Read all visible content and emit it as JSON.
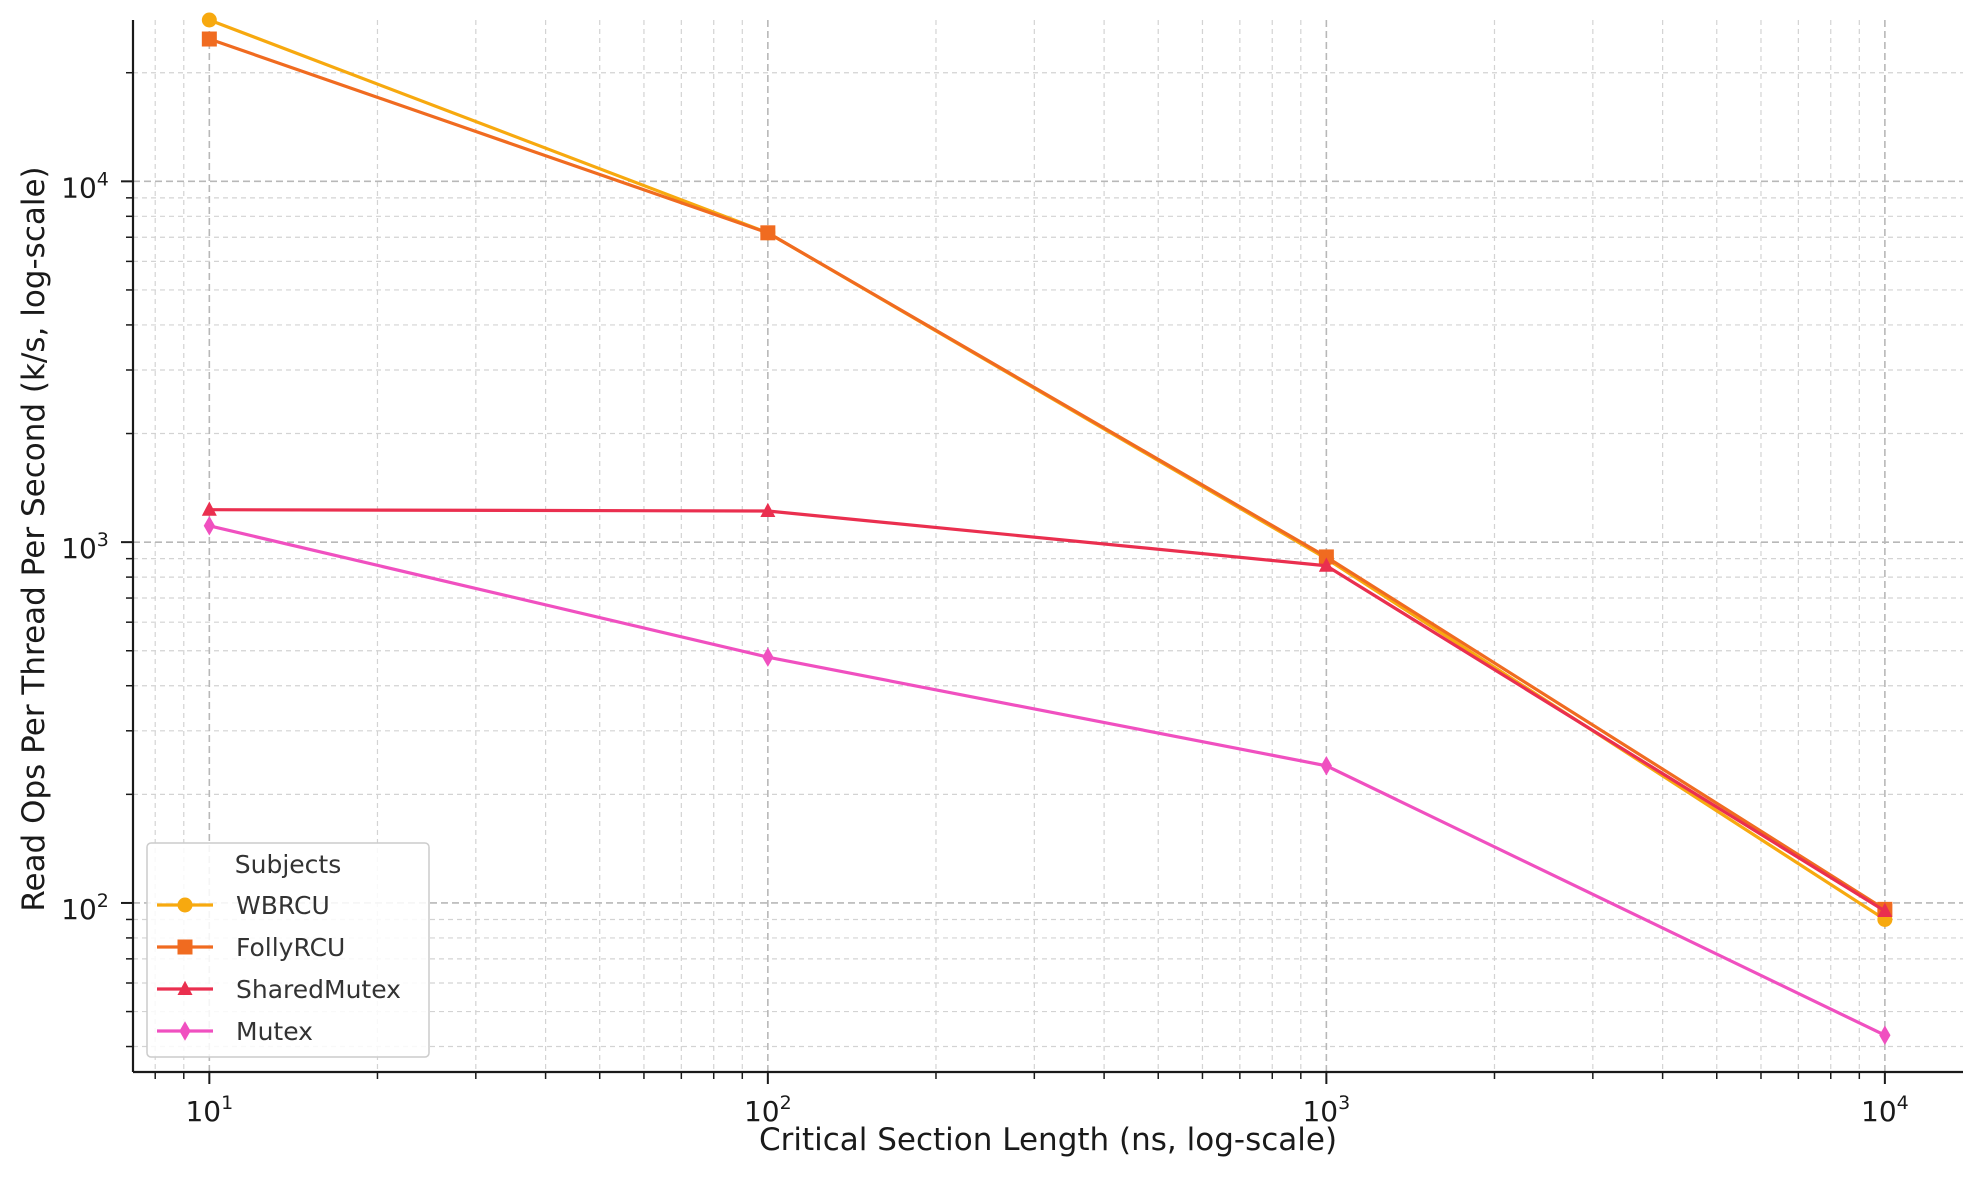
{
  "chart_data": {
    "type": "line",
    "xlabel": "Critical Section Length (ns, log-scale)",
    "ylabel": "Read Ops Per Thread Per Second (k/s, log-scale)",
    "xscale": "log",
    "yscale": "log",
    "xlim": [
      7.3,
      13800
    ],
    "ylim": [
      34,
      28000
    ],
    "grid": true,
    "x": [
      10,
      100,
      1000,
      10000
    ],
    "x_ticks": [
      {
        "base": "10",
        "exp": "1"
      },
      {
        "base": "10",
        "exp": "2"
      },
      {
        "base": "10",
        "exp": "3"
      },
      {
        "base": "10",
        "exp": "4"
      }
    ],
    "y_ticks": [
      {
        "base": "10",
        "exp": "2"
      },
      {
        "base": "10",
        "exp": "3"
      },
      {
        "base": "10",
        "exp": "4"
      }
    ],
    "legend": {
      "title": "Subjects",
      "position": "lower-left"
    },
    "series": [
      {
        "name": "WBRCU",
        "values": [
          28000,
          7200,
          900,
          90
        ],
        "color": "#f7a90f",
        "marker": "circle"
      },
      {
        "name": "FollyRCU",
        "values": [
          24800,
          7200,
          910,
          96
        ],
        "color": "#f06b20",
        "marker": "square"
      },
      {
        "name": "SharedMutex",
        "values": [
          1230,
          1220,
          860,
          95
        ],
        "color": "#ea2f4f",
        "marker": "triangle"
      },
      {
        "name": "Mutex",
        "values": [
          1110,
          480,
          240,
          43
        ],
        "color": "#f050c0",
        "marker": "diamond"
      }
    ]
  }
}
